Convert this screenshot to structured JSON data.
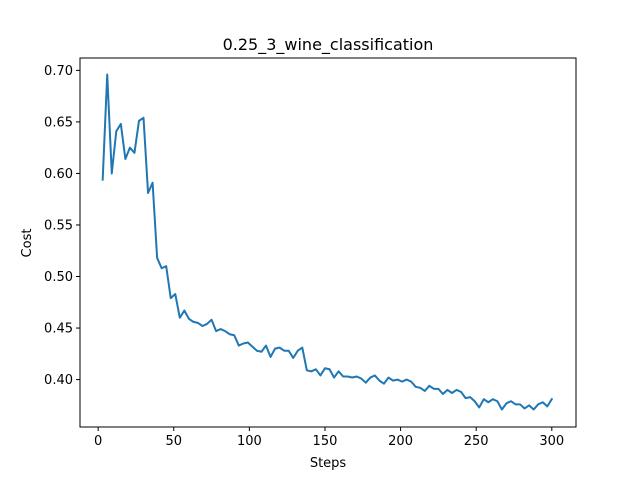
{
  "chart_data": {
    "type": "line",
    "title": "0.25_3_wine_classification",
    "xlabel": "Steps",
    "ylabel": "Cost",
    "xlim": [
      -12,
      316
    ],
    "ylim": [
      0.354,
      0.712
    ],
    "xticks": [
      0,
      50,
      100,
      150,
      200,
      250,
      300
    ],
    "yticks": [
      0.4,
      0.45,
      0.5,
      0.55,
      0.6,
      0.65,
      0.7
    ],
    "ytick_format_decimals": 2,
    "grid": false,
    "color": "#1f77b4",
    "series": [
      {
        "x": [
          3,
          6,
          9,
          12,
          15,
          18,
          21,
          24,
          27,
          30,
          33,
          36,
          39,
          42,
          45,
          48,
          51,
          54,
          57,
          60,
          63,
          66,
          69,
          72,
          75,
          78,
          81,
          84,
          87,
          90,
          93,
          96,
          99,
          102,
          105,
          108,
          111,
          114,
          117,
          120,
          123,
          126,
          129,
          132,
          135,
          138,
          141,
          144,
          147,
          150,
          153,
          156,
          159,
          162,
          165,
          168,
          171,
          174,
          177,
          180,
          183,
          186,
          189,
          192,
          195,
          198,
          201,
          204,
          207,
          210,
          213,
          216,
          219,
          222,
          225,
          228,
          231,
          234,
          237,
          240,
          243,
          246,
          249,
          252,
          255,
          258,
          261,
          264,
          267,
          270,
          273,
          276,
          279,
          282,
          285,
          288,
          291,
          294,
          297,
          300
        ],
        "values": [
          0.594,
          0.696,
          0.6,
          0.641,
          0.648,
          0.614,
          0.625,
          0.62,
          0.651,
          0.654,
          0.581,
          0.591,
          0.518,
          0.508,
          0.51,
          0.479,
          0.483,
          0.46,
          0.467,
          0.459,
          0.456,
          0.455,
          0.452,
          0.454,
          0.458,
          0.447,
          0.449,
          0.447,
          0.444,
          0.443,
          0.433,
          0.435,
          0.436,
          0.432,
          0.428,
          0.427,
          0.433,
          0.422,
          0.43,
          0.431,
          0.428,
          0.428,
          0.421,
          0.428,
          0.431,
          0.409,
          0.408,
          0.41,
          0.404,
          0.411,
          0.41,
          0.402,
          0.408,
          0.403,
          0.403,
          0.402,
          0.403,
          0.401,
          0.397,
          0.402,
          0.404,
          0.399,
          0.396,
          0.402,
          0.399,
          0.4,
          0.398,
          0.4,
          0.398,
          0.393,
          0.392,
          0.389,
          0.394,
          0.391,
          0.391,
          0.386,
          0.39,
          0.387,
          0.39,
          0.388,
          0.382,
          0.383,
          0.379,
          0.373,
          0.381,
          0.378,
          0.381,
          0.379,
          0.371,
          0.377,
          0.379,
          0.376,
          0.376,
          0.372,
          0.375,
          0.371,
          0.376,
          0.378,
          0.374,
          0.381
        ]
      }
    ]
  }
}
